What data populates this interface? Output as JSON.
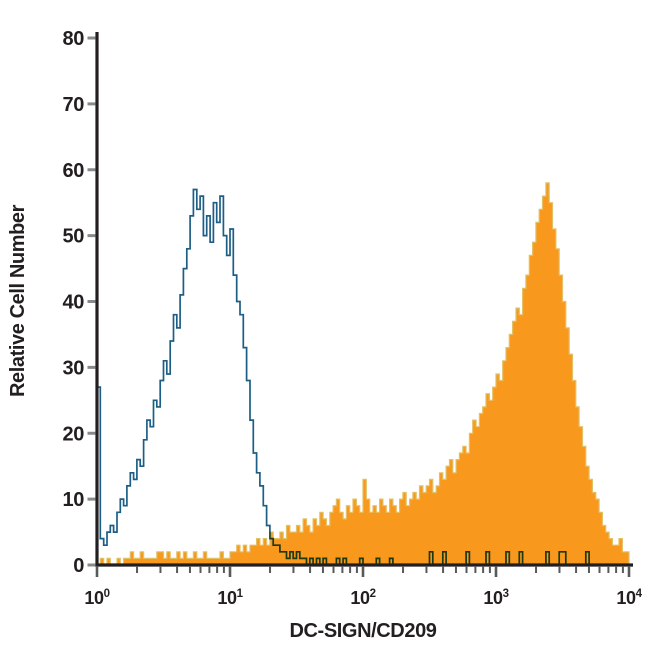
{
  "figure": {
    "background": "#ffffff",
    "kind": "flow cytometry overlay histogram"
  },
  "chart_data": {
    "type": "area",
    "subtype": "flow-histogram-overlay-step",
    "title": "",
    "xlabel": "DC-SIGN/CD209",
    "ylabel": "Relative Cell Number",
    "x_scale": "log10",
    "x_range_log10": [
      0,
      4
    ],
    "x_decade_ticks": [
      {
        "base": "10",
        "exp": "0",
        "log10": 0
      },
      {
        "base": "10",
        "exp": "1",
        "log10": 1
      },
      {
        "base": "10",
        "exp": "2",
        "log10": 2
      },
      {
        "base": "10",
        "exp": "3",
        "log10": 3
      },
      {
        "base": "10",
        "exp": "4",
        "log10": 4
      }
    ],
    "x_minor_tick_mantissas": [
      2,
      3,
      4,
      5,
      6,
      7,
      8,
      9
    ],
    "y_ticks": [
      0,
      10,
      20,
      30,
      40,
      50,
      60,
      70,
      80
    ],
    "ylim": [
      0,
      80
    ],
    "grid": false,
    "legend": "none",
    "bins": 160,
    "series": [
      {
        "name": "open-blue-histogram",
        "style": "open-outline",
        "color": "#1d5e86",
        "peak_value": 57,
        "peak_log10_x": 0.73,
        "values": [
          27,
          4,
          3,
          5,
          6,
          5,
          8,
          10,
          9,
          12,
          14,
          13,
          16,
          15,
          19,
          22,
          21,
          25,
          24,
          28,
          31,
          29,
          34,
          38,
          36,
          41,
          45,
          48,
          53,
          57,
          54,
          56,
          50,
          53,
          49,
          55,
          52,
          56,
          50,
          47,
          51,
          44,
          40,
          38,
          33,
          28,
          22,
          17,
          14,
          12,
          9,
          6,
          4,
          3,
          3,
          2,
          2,
          1,
          2,
          1,
          2,
          1,
          1,
          0,
          1,
          0,
          1,
          0,
          1,
          0,
          0,
          0,
          1,
          0,
          1,
          0,
          0,
          0,
          0,
          1,
          0,
          0,
          0,
          0,
          1,
          0,
          0,
          0,
          1,
          0,
          0,
          0,
          0,
          0,
          0,
          0,
          0,
          0,
          0,
          0,
          2,
          0,
          0,
          0,
          2,
          0,
          0,
          0,
          0,
          0,
          0,
          2,
          0,
          0,
          0,
          0,
          0,
          2,
          0,
          0,
          0,
          0,
          0,
          2,
          0,
          0,
          0,
          2,
          0,
          0,
          0,
          0,
          0,
          0,
          0,
          2,
          0,
          0,
          0,
          2,
          2,
          0,
          0,
          0,
          0,
          0,
          0,
          2,
          0,
          0,
          0,
          0,
          0,
          0,
          0,
          0,
          0,
          0,
          0,
          0
        ]
      },
      {
        "name": "filled-orange-histogram",
        "style": "filled",
        "color": "#f8991e",
        "outline_color": "#e2c065",
        "peak_value": 58,
        "peak_log10_x": 3.38,
        "values": [
          0,
          1,
          0,
          1,
          0,
          0,
          1,
          0,
          1,
          1,
          2,
          1,
          1,
          2,
          1,
          1,
          1,
          1,
          2,
          2,
          1,
          2,
          1,
          1,
          2,
          1,
          2,
          1,
          1,
          2,
          1,
          1,
          2,
          1,
          1,
          1,
          1,
          2,
          1,
          1,
          2,
          2,
          3,
          2,
          3,
          2,
          3,
          3,
          4,
          3,
          4,
          3,
          5,
          4,
          4,
          5,
          4,
          6,
          5,
          5,
          6,
          5,
          7,
          6,
          5,
          7,
          6,
          8,
          7,
          6,
          8,
          9,
          10,
          8,
          7,
          9,
          8,
          10,
          9,
          8,
          13,
          10,
          8,
          9,
          8,
          10,
          9,
          8,
          10,
          9,
          8,
          10,
          11,
          9,
          10,
          11,
          10,
          12,
          11,
          12,
          13,
          11,
          12,
          14,
          13,
          15,
          16,
          14,
          16,
          17,
          18,
          17,
          20,
          22,
          21,
          23,
          24,
          26,
          25,
          27,
          29,
          28,
          31,
          33,
          35,
          37,
          39,
          38,
          42,
          44,
          47,
          49,
          52,
          54,
          56,
          58,
          55,
          51,
          48,
          44,
          40,
          36,
          32,
          28,
          24,
          21,
          18,
          15,
          13,
          11,
          10,
          8,
          6,
          5,
          4,
          3,
          3,
          4,
          2,
          2
        ]
      }
    ]
  },
  "axis_style": {
    "axis_color": "#231f20",
    "y_tick_color": "#87898c",
    "x_tick_color": "#58595b",
    "label_color": "#231f20"
  }
}
